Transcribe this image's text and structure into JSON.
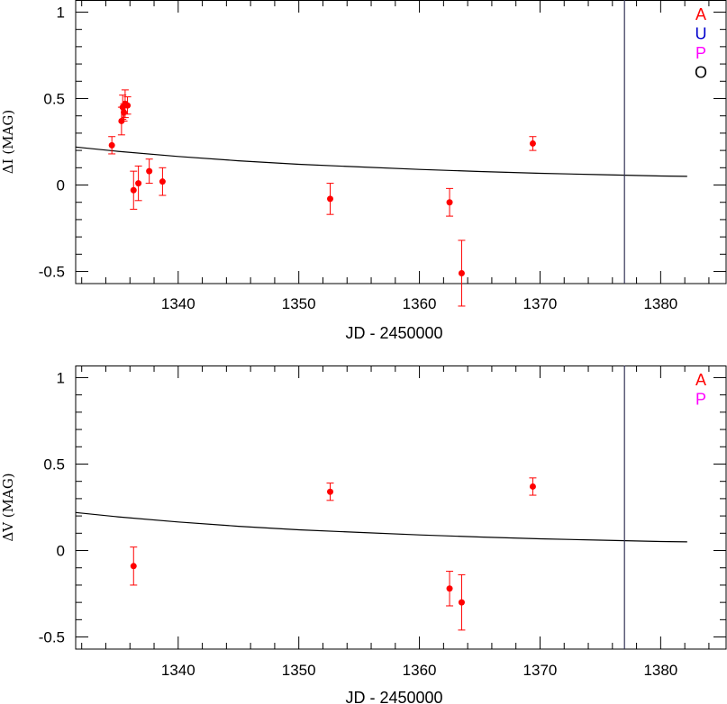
{
  "chart_data": [
    {
      "type": "scatter",
      "xlabel": "JD - 2450000",
      "ylabel": "ΔI (MAG)",
      "xlim": [
        1331.5,
        1385.5
      ],
      "ylim": [
        -0.57,
        1.07
      ],
      "xticks": [
        1340,
        1350,
        1360,
        1370,
        1380
      ],
      "yticks": [
        1,
        0.5,
        0,
        -0.5
      ],
      "legend": {
        "placement": "top-right",
        "entries": [
          {
            "label": "A",
            "color": "#ff0000"
          },
          {
            "label": "U",
            "color": "#0000cc"
          },
          {
            "label": "P",
            "color": "#ff00ff"
          },
          {
            "label": "O",
            "color": "#000000"
          }
        ]
      },
      "points": [
        {
          "x": 1334.5,
          "y": 0.23,
          "err": 0.05
        },
        {
          "x": 1335.3,
          "y": 0.37,
          "err": 0.08
        },
        {
          "x": 1335.4,
          "y": 0.45,
          "err": 0.07
        },
        {
          "x": 1335.5,
          "y": 0.42,
          "err": 0.05
        },
        {
          "x": 1335.6,
          "y": 0.47,
          "err": 0.08
        },
        {
          "x": 1335.8,
          "y": 0.46,
          "err": 0.05
        },
        {
          "x": 1336.3,
          "y": -0.03,
          "err": 0.11
        },
        {
          "x": 1336.7,
          "y": 0.01,
          "err": 0.1
        },
        {
          "x": 1337.6,
          "y": 0.08,
          "err": 0.07
        },
        {
          "x": 1338.7,
          "y": 0.02,
          "err": 0.08
        },
        {
          "x": 1352.6,
          "y": -0.08,
          "err": 0.09
        },
        {
          "x": 1362.5,
          "y": -0.1,
          "err": 0.08
        },
        {
          "x": 1363.5,
          "y": -0.51,
          "err": 0.19
        },
        {
          "x": 1369.4,
          "y": 0.24,
          "err": 0.04
        }
      ],
      "model_curve": [
        {
          "x": 1331.5,
          "y": 0.22
        },
        {
          "x": 1335,
          "y": 0.195
        },
        {
          "x": 1340,
          "y": 0.165
        },
        {
          "x": 1345,
          "y": 0.14
        },
        {
          "x": 1350,
          "y": 0.12
        },
        {
          "x": 1355,
          "y": 0.105
        },
        {
          "x": 1360,
          "y": 0.09
        },
        {
          "x": 1365,
          "y": 0.078
        },
        {
          "x": 1370,
          "y": 0.068
        },
        {
          "x": 1375,
          "y": 0.06
        },
        {
          "x": 1380,
          "y": 0.052
        },
        {
          "x": 1382.2,
          "y": 0.05
        }
      ],
      "vline_x": 1377
    },
    {
      "type": "scatter",
      "xlabel": "JD - 2450000",
      "ylabel": "ΔV (MAG)",
      "xlim": [
        1331.5,
        1385.5
      ],
      "ylim": [
        -0.57,
        1.07
      ],
      "xticks": [
        1340,
        1350,
        1360,
        1370,
        1380
      ],
      "yticks": [
        1,
        0.5,
        0,
        -0.5
      ],
      "legend": {
        "placement": "top-right",
        "entries": [
          {
            "label": "A",
            "color": "#ff0000"
          },
          {
            "label": "P",
            "color": "#ff00ff"
          }
        ]
      },
      "points": [
        {
          "x": 1336.3,
          "y": -0.09,
          "err": 0.11
        },
        {
          "x": 1352.6,
          "y": 0.34,
          "err": 0.05
        },
        {
          "x": 1362.5,
          "y": -0.22,
          "err": 0.1
        },
        {
          "x": 1363.5,
          "y": -0.3,
          "err": 0.16
        },
        {
          "x": 1369.4,
          "y": 0.37,
          "err": 0.05
        }
      ],
      "model_curve": [
        {
          "x": 1331.5,
          "y": 0.22
        },
        {
          "x": 1335,
          "y": 0.195
        },
        {
          "x": 1340,
          "y": 0.165
        },
        {
          "x": 1345,
          "y": 0.14
        },
        {
          "x": 1350,
          "y": 0.12
        },
        {
          "x": 1355,
          "y": 0.105
        },
        {
          "x": 1360,
          "y": 0.09
        },
        {
          "x": 1365,
          "y": 0.078
        },
        {
          "x": 1370,
          "y": 0.068
        },
        {
          "x": 1375,
          "y": 0.06
        },
        {
          "x": 1380,
          "y": 0.052
        },
        {
          "x": 1382.2,
          "y": 0.05
        }
      ],
      "vline_x": 1377
    }
  ],
  "colors": {
    "data": "#ff0000",
    "axis": "#000000",
    "model": "#000000",
    "vline": "#333355"
  }
}
